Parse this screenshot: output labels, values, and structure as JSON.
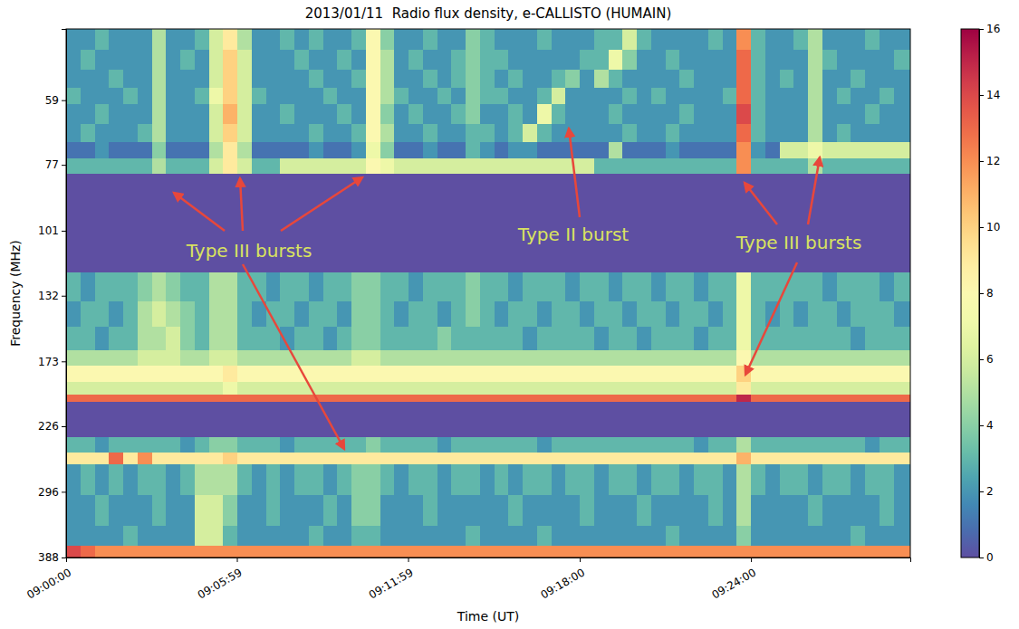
{
  "chart_data": {
    "type": "heatmap",
    "title": "2013/01/11  Radio flux density, e-CALLISTO (HUMAIN)",
    "x_label": "Time (UT)",
    "y_label": "Frequency (MHz)",
    "annotations": [
      "Type III bursts",
      "Type II burst",
      "Type III bursts"
    ],
    "log": "y",
    "xlim": [
      0,
      1775
    ],
    "ylim": [
      44,
      388
    ],
    "xticks": [
      {
        "value": 0,
        "label": "09:00:00"
      },
      {
        "value": 359,
        "label": "09:05:59"
      },
      {
        "value": 719,
        "label": "09:11:59"
      },
      {
        "value": 1080,
        "label": "09:18:00"
      },
      {
        "value": 1440,
        "label": "09:24:00"
      }
    ],
    "yticks": [
      59,
      77,
      101,
      132,
      173,
      226,
      296,
      388
    ],
    "colorbar": {
      "range": [
        0,
        16
      ],
      "ticks": [
        0,
        2,
        4,
        6,
        8,
        10,
        12,
        14,
        16
      ]
    },
    "x_edges": [
      0,
      30,
      60,
      90,
      120,
      150,
      180,
      210,
      240,
      270,
      300,
      330,
      360,
      390,
      420,
      450,
      480,
      510,
      540,
      570,
      600,
      630,
      660,
      690,
      720,
      750,
      780,
      810,
      840,
      870,
      900,
      930,
      960,
      990,
      1020,
      1050,
      1080,
      1110,
      1140,
      1170,
      1200,
      1230,
      1260,
      1290,
      1320,
      1350,
      1380,
      1410,
      1440,
      1470,
      1500,
      1530,
      1560,
      1590,
      1620,
      1650,
      1680,
      1710,
      1740,
      1775
    ],
    "y_edges": [
      44,
      48,
      52,
      56,
      60,
      65,
      70,
      75,
      80,
      120,
      135,
      150,
      165,
      176,
      188,
      198,
      204,
      236,
      252,
      264,
      300,
      340,
      370,
      388
    ],
    "values": [
      [
        2,
        2,
        3,
        2,
        2,
        2,
        5,
        2,
        2,
        3,
        6,
        9,
        5,
        2,
        2,
        3,
        2,
        3,
        2,
        2,
        3,
        8,
        4,
        2,
        2,
        3,
        2,
        2,
        4,
        3,
        2,
        2,
        2,
        3,
        2,
        2,
        2,
        3,
        3,
        6,
        3,
        2,
        2,
        2,
        2,
        3,
        2,
        12,
        3,
        2,
        2,
        3,
        5,
        2,
        2,
        2,
        3,
        2,
        2
      ],
      [
        2,
        3,
        2,
        2,
        2,
        2,
        5,
        2,
        3,
        2,
        6,
        10,
        6,
        2,
        2,
        2,
        3,
        2,
        2,
        3,
        2,
        8,
        5,
        2,
        3,
        2,
        2,
        3,
        4,
        3,
        3,
        2,
        2,
        2,
        2,
        2,
        3,
        3,
        7,
        4,
        2,
        2,
        3,
        2,
        2,
        2,
        2,
        13,
        3,
        2,
        2,
        2,
        5,
        3,
        2,
        2,
        2,
        2,
        3
      ],
      [
        2,
        2,
        2,
        3,
        2,
        2,
        5,
        2,
        2,
        2,
        6,
        10,
        6,
        2,
        2,
        2,
        2,
        3,
        2,
        2,
        3,
        8,
        5,
        2,
        2,
        3,
        2,
        3,
        4,
        3,
        2,
        3,
        2,
        2,
        3,
        4,
        2,
        5,
        3,
        2,
        2,
        2,
        2,
        3,
        2,
        2,
        2,
        13,
        3,
        2,
        3,
        2,
        5,
        2,
        2,
        3,
        2,
        2,
        2
      ],
      [
        3,
        2,
        2,
        2,
        3,
        2,
        5,
        2,
        2,
        3,
        7,
        10,
        6,
        3,
        2,
        2,
        2,
        2,
        3,
        2,
        2,
        8,
        5,
        3,
        2,
        2,
        3,
        2,
        4,
        3,
        3,
        2,
        2,
        3,
        6,
        2,
        2,
        2,
        2,
        3,
        2,
        3,
        2,
        2,
        2,
        2,
        3,
        13,
        3,
        2,
        2,
        2,
        5,
        2,
        3,
        2,
        2,
        3,
        2
      ],
      [
        2,
        2,
        3,
        2,
        2,
        2,
        5,
        2,
        2,
        2,
        6,
        11,
        6,
        2,
        2,
        3,
        2,
        2,
        2,
        3,
        2,
        8,
        4,
        2,
        3,
        2,
        2,
        3,
        4,
        2,
        2,
        3,
        2,
        7,
        3,
        2,
        2,
        2,
        3,
        2,
        2,
        2,
        2,
        3,
        2,
        2,
        2,
        14,
        3,
        2,
        2,
        2,
        5,
        2,
        2,
        2,
        3,
        2,
        2
      ],
      [
        2,
        3,
        2,
        2,
        2,
        3,
        5,
        2,
        2,
        2,
        6,
        10,
        6,
        2,
        2,
        2,
        2,
        3,
        2,
        2,
        3,
        8,
        5,
        2,
        2,
        3,
        2,
        2,
        3,
        3,
        2,
        3,
        6,
        3,
        2,
        2,
        2,
        2,
        2,
        3,
        2,
        2,
        3,
        2,
        2,
        2,
        2,
        13,
        3,
        2,
        2,
        2,
        5,
        2,
        3,
        2,
        2,
        2,
        2
      ],
      [
        1,
        1,
        2,
        1,
        1,
        1,
        4,
        1,
        1,
        1,
        5,
        9,
        5,
        1,
        1,
        1,
        1,
        2,
        1,
        1,
        2,
        7,
        4,
        1,
        1,
        2,
        1,
        1,
        3,
        2,
        1,
        2,
        2,
        1,
        1,
        1,
        1,
        1,
        5,
        1,
        1,
        1,
        2,
        1,
        1,
        1,
        1,
        12,
        2,
        1,
        6,
        6,
        7,
        6,
        6,
        6,
        6,
        6,
        6
      ],
      [
        3,
        3,
        3,
        3,
        3,
        3,
        5,
        3,
        3,
        3,
        6,
        9,
        6,
        3,
        3,
        6,
        6,
        6,
        6,
        6,
        6,
        8,
        7,
        6,
        6,
        6,
        6,
        6,
        6,
        6,
        6,
        6,
        6,
        6,
        6,
        6,
        6,
        3,
        3,
        3,
        3,
        3,
        3,
        3,
        3,
        3,
        3,
        12,
        3,
        3,
        3,
        3,
        5,
        3,
        3,
        3,
        3,
        3,
        3
      ],
      [
        0,
        0,
        0,
        0,
        0,
        0,
        0,
        0,
        0,
        0,
        0,
        0,
        0,
        0,
        0,
        0,
        0,
        0,
        0,
        0,
        0,
        0,
        0,
        0,
        0,
        0,
        0,
        0,
        0,
        0,
        0,
        0,
        0,
        0,
        0,
        0,
        0,
        0,
        0,
        0,
        0,
        0,
        0,
        0,
        0,
        0,
        0,
        0,
        0,
        0,
        0,
        0,
        0,
        0,
        0,
        0,
        0,
        0,
        0
      ],
      [
        3,
        2,
        3,
        3,
        3,
        4,
        5,
        4,
        3,
        3,
        5,
        5,
        3,
        3,
        2,
        3,
        3,
        2,
        3,
        3,
        4,
        4,
        3,
        3,
        2,
        3,
        3,
        3,
        4,
        3,
        3,
        2,
        3,
        3,
        3,
        2,
        3,
        3,
        2,
        3,
        3,
        2,
        3,
        3,
        2,
        3,
        3,
        7,
        3,
        3,
        3,
        3,
        3,
        2,
        3,
        3,
        3,
        2,
        3
      ],
      [
        2,
        3,
        3,
        2,
        3,
        5,
        6,
        5,
        4,
        3,
        5,
        5,
        3,
        2,
        3,
        3,
        2,
        3,
        3,
        2,
        4,
        4,
        3,
        2,
        3,
        3,
        2,
        3,
        4,
        3,
        2,
        3,
        3,
        2,
        3,
        3,
        2,
        3,
        3,
        2,
        3,
        3,
        2,
        3,
        3,
        2,
        3,
        7,
        3,
        2,
        3,
        2,
        3,
        3,
        2,
        3,
        3,
        3,
        2
      ],
      [
        3,
        3,
        2,
        3,
        3,
        5,
        5,
        6,
        4,
        3,
        5,
        5,
        3,
        3,
        3,
        2,
        3,
        3,
        2,
        3,
        4,
        4,
        3,
        3,
        3,
        3,
        4,
        3,
        3,
        3,
        3,
        3,
        2,
        3,
        3,
        3,
        3,
        2,
        3,
        3,
        2,
        3,
        3,
        3,
        2,
        3,
        3,
        7,
        3,
        3,
        3,
        3,
        3,
        3,
        3,
        2,
        3,
        3,
        3
      ],
      [
        5,
        5,
        5,
        5,
        5,
        6,
        6,
        6,
        5,
        5,
        6,
        6,
        5,
        5,
        5,
        5,
        5,
        5,
        5,
        5,
        6,
        6,
        5,
        5,
        5,
        5,
        5,
        5,
        5,
        5,
        5,
        5,
        5,
        5,
        5,
        5,
        5,
        5,
        5,
        5,
        5,
        5,
        5,
        5,
        5,
        5,
        5,
        8,
        5,
        5,
        5,
        5,
        5,
        5,
        5,
        5,
        5,
        5,
        5
      ],
      [
        8,
        8,
        8,
        8,
        8,
        8,
        8,
        8,
        8,
        8,
        8,
        9,
        8,
        8,
        8,
        8,
        8,
        8,
        8,
        8,
        8,
        8,
        8,
        8,
        8,
        8,
        8,
        8,
        8,
        8,
        8,
        8,
        8,
        8,
        8,
        8,
        8,
        8,
        8,
        8,
        8,
        8,
        8,
        8,
        8,
        8,
        8,
        10,
        8,
        8,
        8,
        8,
        8,
        8,
        8,
        8,
        8,
        8,
        8
      ],
      [
        6,
        6,
        6,
        6,
        6,
        6,
        6,
        6,
        6,
        6,
        6,
        7,
        6,
        6,
        6,
        6,
        6,
        6,
        6,
        6,
        6,
        6,
        6,
        6,
        6,
        6,
        6,
        6,
        6,
        6,
        6,
        6,
        6,
        6,
        6,
        6,
        6,
        6,
        6,
        6,
        6,
        6,
        6,
        6,
        6,
        6,
        6,
        9,
        6,
        6,
        6,
        6,
        6,
        6,
        6,
        6,
        6,
        6,
        6
      ],
      [
        13,
        13,
        13,
        13,
        13,
        13,
        13,
        13,
        13,
        13,
        13,
        13,
        13,
        13,
        13,
        13,
        13,
        13,
        13,
        13,
        13,
        13,
        13,
        13,
        13,
        13,
        13,
        13,
        13,
        13,
        13,
        13,
        13,
        13,
        13,
        13,
        13,
        13,
        13,
        13,
        13,
        13,
        13,
        13,
        13,
        13,
        13,
        15,
        13,
        13,
        13,
        13,
        13,
        13,
        13,
        13,
        13,
        13,
        13
      ],
      [
        0,
        0,
        0,
        0,
        0,
        0,
        0,
        0,
        0,
        0,
        0,
        0,
        0,
        0,
        0,
        0,
        0,
        0,
        0,
        0,
        0,
        0,
        0,
        0,
        0,
        0,
        0,
        0,
        0,
        0,
        0,
        0,
        0,
        0,
        0,
        0,
        0,
        0,
        0,
        0,
        0,
        0,
        0,
        0,
        0,
        0,
        0,
        0,
        0,
        0,
        0,
        0,
        0,
        0,
        0,
        0,
        0,
        0,
        0
      ],
      [
        3,
        3,
        2,
        3,
        3,
        3,
        3,
        3,
        2,
        3,
        4,
        4,
        3,
        3,
        3,
        2,
        3,
        3,
        3,
        3,
        3,
        4,
        3,
        3,
        3,
        3,
        2,
        3,
        3,
        3,
        3,
        3,
        3,
        2,
        3,
        3,
        3,
        3,
        3,
        3,
        3,
        3,
        3,
        3,
        2,
        3,
        3,
        5,
        3,
        3,
        3,
        3,
        3,
        3,
        3,
        3,
        2,
        3,
        3
      ],
      [
        9,
        9,
        9,
        13,
        9,
        12,
        9,
        9,
        9,
        9,
        9,
        10,
        9,
        9,
        9,
        9,
        9,
        9,
        9,
        9,
        9,
        9,
        9,
        9,
        9,
        9,
        9,
        9,
        9,
        9,
        9,
        9,
        9,
        9,
        9,
        9,
        9,
        9,
        9,
        9,
        9,
        9,
        9,
        9,
        9,
        9,
        9,
        11,
        9,
        9,
        9,
        9,
        9,
        9,
        9,
        9,
        9,
        9,
        9
      ],
      [
        2,
        3,
        2,
        3,
        2,
        3,
        3,
        2,
        3,
        5,
        5,
        5,
        3,
        2,
        3,
        2,
        3,
        3,
        2,
        3,
        4,
        4,
        3,
        2,
        3,
        3,
        2,
        3,
        3,
        2,
        3,
        2,
        3,
        3,
        2,
        3,
        3,
        2,
        3,
        3,
        2,
        3,
        3,
        2,
        3,
        3,
        2,
        5,
        3,
        2,
        3,
        3,
        2,
        3,
        3,
        2,
        3,
        3,
        2
      ],
      [
        2,
        2,
        3,
        2,
        2,
        2,
        3,
        2,
        2,
        6,
        6,
        4,
        2,
        2,
        3,
        2,
        2,
        2,
        3,
        2,
        4,
        4,
        2,
        2,
        2,
        3,
        2,
        2,
        2,
        2,
        2,
        3,
        2,
        2,
        2,
        2,
        3,
        2,
        2,
        2,
        3,
        2,
        2,
        2,
        2,
        3,
        2,
        5,
        2,
        2,
        2,
        2,
        3,
        2,
        2,
        2,
        2,
        3,
        2
      ],
      [
        2,
        2,
        2,
        2,
        3,
        2,
        2,
        2,
        2,
        6,
        6,
        3,
        2,
        2,
        2,
        2,
        2,
        3,
        2,
        2,
        3,
        3,
        2,
        2,
        2,
        2,
        2,
        2,
        3,
        2,
        2,
        2,
        2,
        3,
        2,
        2,
        2,
        2,
        2,
        2,
        2,
        2,
        3,
        2,
        2,
        2,
        2,
        4,
        2,
        2,
        2,
        2,
        2,
        2,
        2,
        3,
        2,
        2,
        2
      ],
      [
        14,
        13,
        12,
        12,
        12,
        12,
        12,
        12,
        12,
        12,
        12,
        12,
        12,
        12,
        12,
        12,
        12,
        12,
        12,
        12,
        12,
        12,
        12,
        12,
        12,
        12,
        12,
        12,
        12,
        12,
        12,
        12,
        12,
        12,
        12,
        12,
        12,
        12,
        12,
        12,
        12,
        12,
        12,
        12,
        12,
        12,
        12,
        12,
        12,
        12,
        12,
        12,
        12,
        12,
        12,
        12,
        12,
        12,
        12
      ]
    ]
  }
}
